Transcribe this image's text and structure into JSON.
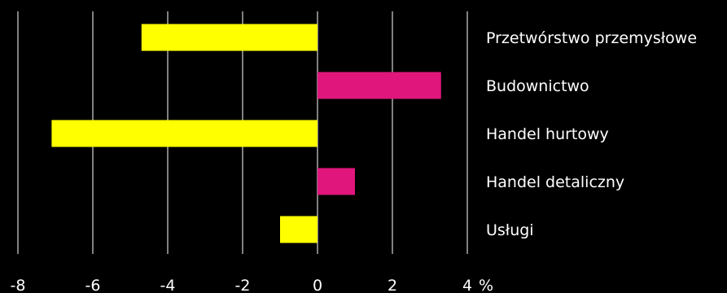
{
  "chart_data": {
    "type": "bar",
    "orientation": "horizontal",
    "categories": [
      "Przetwórstwo przemysłowe",
      "Budownictwo",
      "Handel hurtowy",
      "Handel detaliczny",
      "Usługi"
    ],
    "values": [
      -4.7,
      3.3,
      -7.1,
      1.0,
      -1.0
    ],
    "bar_colors": [
      "#ffff00",
      "#e0167c",
      "#ffff00",
      "#e0167c",
      "#ffff00"
    ],
    "xlim": [
      -8,
      4
    ],
    "xticks": [
      "-8",
      "-6",
      "-4",
      "-2",
      "0",
      "2",
      "4"
    ],
    "unit": "%",
    "grid": true,
    "background": "#000000",
    "text_color": "#ffffff"
  }
}
